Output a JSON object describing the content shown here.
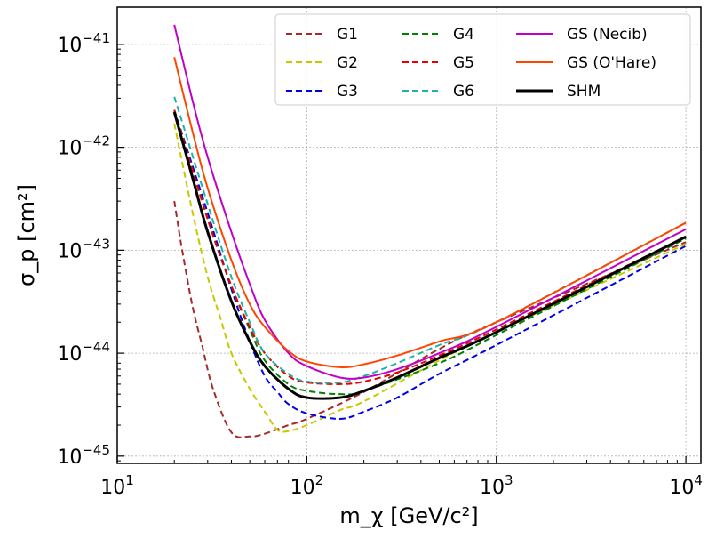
{
  "chart_data": {
    "type": "line",
    "xscale": "log",
    "yscale": "log",
    "xlim": [
      10,
      12000
    ],
    "ylim": [
      8.5e-46,
      2.3e-41
    ],
    "xlabel": "m_χ [GeV/c²]",
    "ylabel": "σ_p [cm²]",
    "grid": true,
    "legend_position": "top-right",
    "xticks": [
      {
        "value": 10,
        "base": "10",
        "exp": "1"
      },
      {
        "value": 100,
        "base": "10",
        "exp": "2"
      },
      {
        "value": 1000,
        "base": "10",
        "exp": "3"
      },
      {
        "value": 10000,
        "base": "10",
        "exp": "4"
      }
    ],
    "yticks": [
      {
        "value": 1e-45,
        "base": "10",
        "exp": "−45"
      },
      {
        "value": 1e-44,
        "base": "10",
        "exp": "−44"
      },
      {
        "value": 1e-43,
        "base": "10",
        "exp": "−43"
      },
      {
        "value": 1e-42,
        "base": "10",
        "exp": "−42"
      },
      {
        "value": 1e-41,
        "base": "10",
        "exp": "−41"
      }
    ],
    "series": [
      {
        "name": "G1",
        "color": "#a52a2a",
        "dash": "dashed",
        "points": [
          [
            20,
            3e-43
          ],
          [
            22,
            1e-43
          ],
          [
            25,
            2.8e-44
          ],
          [
            28,
            1.2e-44
          ],
          [
            32,
            4.5e-45
          ],
          [
            40,
            1.7e-45
          ],
          [
            50,
            1.55e-45
          ],
          [
            60,
            1.65e-45
          ],
          [
            80,
            2e-45
          ],
          [
            100,
            2.3e-45
          ],
          [
            200,
            4.2e-45
          ],
          [
            500,
            1.1e-44
          ],
          [
            1000,
            2e-44
          ],
          [
            10000,
            1.2e-43
          ]
        ]
      },
      {
        "name": "G2",
        "color": "#c8c800",
        "dash": "dashed",
        "points": [
          [
            20,
            1.7e-42
          ],
          [
            25,
            2.3e-43
          ],
          [
            30,
            5.5e-44
          ],
          [
            35,
            2.2e-44
          ],
          [
            40,
            1e-44
          ],
          [
            50,
            4.5e-45
          ],
          [
            60,
            2.7e-45
          ],
          [
            70,
            1.8e-45
          ],
          [
            80,
            1.75e-45
          ],
          [
            100,
            2e-45
          ],
          [
            150,
            2.8e-45
          ],
          [
            200,
            3.4e-45
          ],
          [
            500,
            8.5e-45
          ],
          [
            1000,
            1.6e-44
          ],
          [
            10000,
            1.15e-43
          ]
        ]
      },
      {
        "name": "G3",
        "color": "#0000e6",
        "dash": "dashed",
        "points": [
          [
            20,
            2.3e-42
          ],
          [
            30,
            2.3e-43
          ],
          [
            40,
            4.2e-44
          ],
          [
            50,
            1.3e-44
          ],
          [
            60,
            6e-45
          ],
          [
            70,
            4.2e-45
          ],
          [
            80,
            3.2e-45
          ],
          [
            100,
            2.6e-45
          ],
          [
            150,
            2.3e-45
          ],
          [
            200,
            2.7e-45
          ],
          [
            300,
            3.7e-45
          ],
          [
            500,
            6.3e-45
          ],
          [
            1000,
            1.2e-44
          ],
          [
            10000,
            1.1e-43
          ]
        ]
      },
      {
        "name": "G4",
        "color": "#008000",
        "dash": "dashed",
        "points": [
          [
            20,
            2.3e-42
          ],
          [
            30,
            2e-43
          ],
          [
            40,
            4.5e-44
          ],
          [
            50,
            1.7e-44
          ],
          [
            60,
            8.5e-45
          ],
          [
            80,
            5e-45
          ],
          [
            100,
            4.3e-45
          ],
          [
            150,
            4e-45
          ],
          [
            200,
            4.3e-45
          ],
          [
            500,
            8e-45
          ],
          [
            1000,
            1.5e-44
          ],
          [
            10000,
            1.3e-43
          ]
        ]
      },
      {
        "name": "G5",
        "color": "#e60000",
        "dash": "dashed",
        "points": [
          [
            20,
            2.3e-42
          ],
          [
            30,
            2e-43
          ],
          [
            40,
            4.5e-44
          ],
          [
            50,
            1.8e-44
          ],
          [
            60,
            1e-44
          ],
          [
            80,
            6e-45
          ],
          [
            100,
            5.2e-45
          ],
          [
            150,
            5e-45
          ],
          [
            200,
            5.3e-45
          ],
          [
            300,
            6.5e-45
          ],
          [
            500,
            9.5e-45
          ],
          [
            1000,
            1.7e-44
          ],
          [
            10000,
            1.35e-43
          ]
        ]
      },
      {
        "name": "G6",
        "color": "#20b2aa",
        "dash": "dashed",
        "points": [
          [
            20,
            3.1e-42
          ],
          [
            30,
            2.8e-43
          ],
          [
            40,
            5.5e-44
          ],
          [
            50,
            2e-44
          ],
          [
            60,
            1e-44
          ],
          [
            80,
            6.3e-45
          ],
          [
            100,
            5.3e-45
          ],
          [
            150,
            5.2e-45
          ],
          [
            200,
            6e-45
          ],
          [
            300,
            8e-45
          ],
          [
            500,
            1.2e-44
          ],
          [
            1000,
            2e-44
          ],
          [
            10000,
            1.85e-43
          ]
        ]
      },
      {
        "name": "GS (Necib)",
        "color": "#c000c8",
        "dash": "solid",
        "points": [
          [
            20,
            1.55e-41
          ],
          [
            25,
            2.8e-42
          ],
          [
            30,
            8e-43
          ],
          [
            40,
            1.5e-43
          ],
          [
            50,
            4.7e-44
          ],
          [
            60,
            2.1e-44
          ],
          [
            80,
            1e-44
          ],
          [
            100,
            7.5e-45
          ],
          [
            150,
            5.8e-45
          ],
          [
            200,
            5.8e-45
          ],
          [
            300,
            7e-45
          ],
          [
            500,
            1e-44
          ],
          [
            1000,
            1.8e-44
          ],
          [
            10000,
            1.6e-43
          ]
        ]
      },
      {
        "name": "GS (O'Hare)",
        "color": "#ff4500",
        "dash": "solid",
        "points": [
          [
            20,
            7.5e-42
          ],
          [
            25,
            1.4e-42
          ],
          [
            30,
            4e-43
          ],
          [
            40,
            8e-44
          ],
          [
            50,
            3e-44
          ],
          [
            60,
            1.8e-44
          ],
          [
            80,
            1.05e-44
          ],
          [
            100,
            8.3e-45
          ],
          [
            150,
            7.3e-45
          ],
          [
            200,
            7.8e-45
          ],
          [
            300,
            9.5e-45
          ],
          [
            500,
            1.3e-44
          ],
          [
            1000,
            2e-44
          ],
          [
            10000,
            1.85e-43
          ]
        ]
      },
      {
        "name": "SHM",
        "color": "#000000",
        "dash": "solid",
        "width": 3,
        "points": [
          [
            20,
            2.2e-42
          ],
          [
            25,
            5e-43
          ],
          [
            30,
            1.5e-43
          ],
          [
            40,
            3.2e-44
          ],
          [
            50,
            1.3e-44
          ],
          [
            60,
            7.5e-45
          ],
          [
            80,
            4.5e-45
          ],
          [
            100,
            3.7e-45
          ],
          [
            150,
            3.7e-45
          ],
          [
            200,
            4.3e-45
          ],
          [
            300,
            5.8e-45
          ],
          [
            500,
            9e-45
          ],
          [
            1000,
            1.6e-44
          ],
          [
            10000,
            1.35e-43
          ]
        ]
      }
    ]
  }
}
